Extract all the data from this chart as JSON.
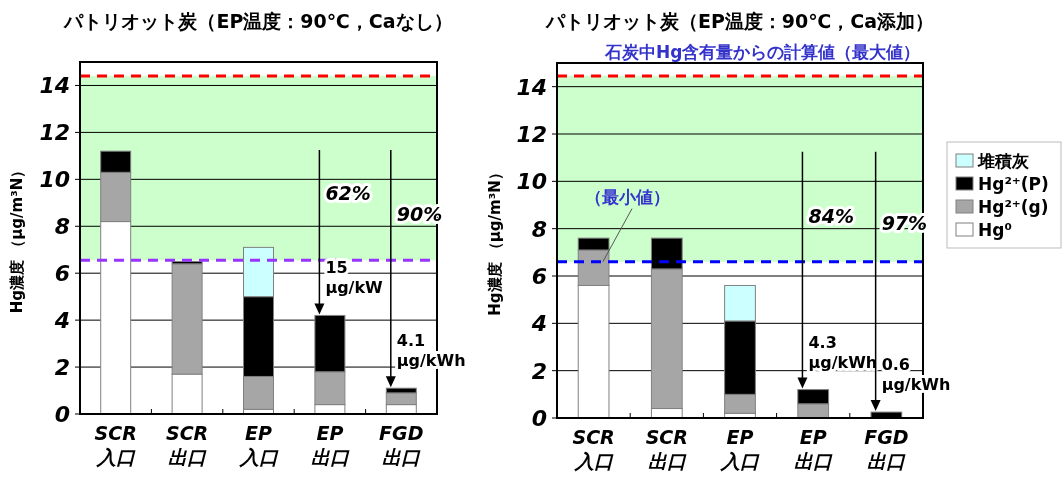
{
  "chart_data": [
    {
      "type": "bar",
      "stacked": true,
      "title": "パトリオット炭（EP温度：90℃，Caなし）",
      "ylabel": "Hg濃度 （μg/m³N）",
      "categories": [
        "SCR\n入口",
        "SCR\n出口",
        "EP\n入口",
        "EP\n出口",
        "FGD\n出口"
      ],
      "series": [
        {
          "color": "#ffffff",
          "values": [
            8.2,
            1.7,
            0.2,
            0.4,
            0.4
          ]
        },
        {
          "color": "#a6a6a6",
          "values": [
            2.1,
            4.7,
            1.4,
            1.4,
            0.5
          ]
        },
        {
          "color": "#000000",
          "values": [
            0.9,
            0.1,
            3.4,
            2.4,
            0.2
          ]
        },
        {
          "color": "#ccffff",
          "values": [
            0,
            0,
            2.1,
            0,
            0
          ]
        }
      ],
      "ylim": [
        0,
        15
      ],
      "yticks": [
        0,
        2,
        4,
        6,
        8,
        10,
        12,
        14
      ],
      "grid": "y",
      "legend": false,
      "bands": [
        {
          "axis": "y",
          "from": 6.55,
          "to": 14.4,
          "color": "#ccffcc"
        }
      ],
      "ref_lines": [
        {
          "axis": "y",
          "value": 14.4,
          "color": "#ff0000",
          "line_style": "dashed"
        },
        {
          "axis": "y",
          "value": 6.55,
          "color": "#9933ff",
          "line_style": "dashed"
        }
      ],
      "annotations": [
        {
          "text": "15\nμg/kW",
          "x": "EP\n出口",
          "y": 4.2
        },
        "62%",
        {
          "text": "4.1\nμg/kWh",
          "x": "FGD\n出口",
          "y": 1.1
        },
        "90%"
      ]
    },
    {
      "type": "bar",
      "stacked": true,
      "title": "パトリオット炭（EP温度：90℃，Ca添加）",
      "ylabel": "Hg濃度 （μg/m³N）",
      "categories": [
        "SCR\n入口",
        "SCR\n出口",
        "EP\n入口",
        "EP\n出口",
        "FGD\n出口"
      ],
      "series": [
        {
          "name": "Hg⁰",
          "color": "#ffffff",
          "values": [
            5.6,
            0.4,
            0.2,
            null,
            0
          ]
        },
        {
          "name": "Hg²⁺(g)",
          "color": "#a6a6a6",
          "values": [
            1.5,
            5.9,
            0.8,
            0.6,
            null
          ]
        },
        {
          "name": "Hg²⁺(P)",
          "color": "#000000",
          "values": [
            0.5,
            1.3,
            3.1,
            0.6,
            0.25
          ]
        },
        {
          "name": "堆積灰",
          "color": "#ccffff",
          "values": [
            0,
            0,
            1.5,
            0,
            0
          ]
        }
      ],
      "ylim": [
        0,
        15
      ],
      "yticks": [
        0,
        2,
        4,
        6,
        8,
        10,
        12,
        14
      ],
      "grid": "y",
      "legend": "right",
      "bands": [
        {
          "axis": "y",
          "from": 6.6,
          "to": 14.45,
          "color": "#ccffcc"
        }
      ],
      "ref_lines": [
        {
          "axis": "y",
          "value": 14.45,
          "color": "#ff0000",
          "line_style": "dashed",
          "label": "石炭中Hg含有量からの計算値（最大値）"
        },
        {
          "axis": "y",
          "value": 6.6,
          "color": "#0000ff",
          "line_style": "dashed",
          "label": "（最小値）"
        }
      ],
      "annotations": [
        {
          "text": "4.3\nμg/kWh",
          "x": "EP\n出口",
          "y": 1.2
        },
        "84%",
        {
          "text": "0.6\nμg/kWh",
          "x": "FGD\n出口",
          "y": 0.25
        },
        "97%"
      ]
    }
  ]
}
